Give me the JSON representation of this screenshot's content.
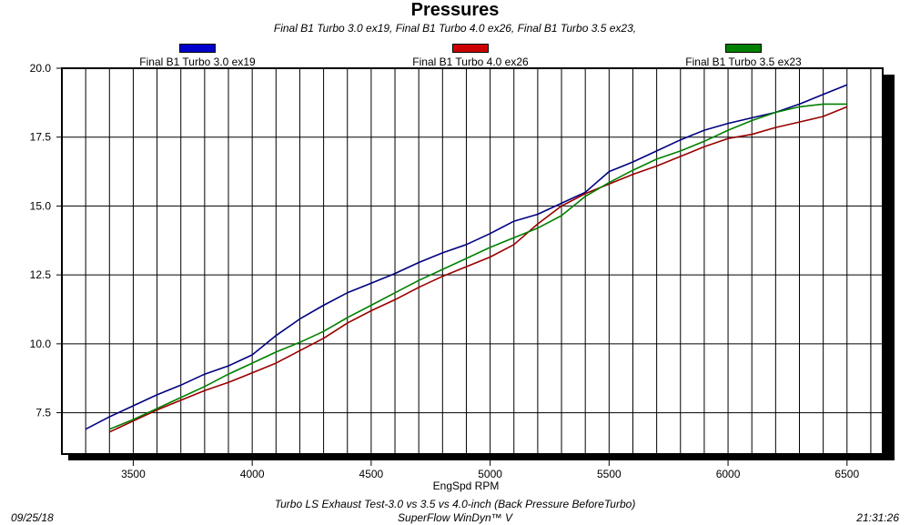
{
  "chart_data": {
    "type": "line",
    "title": "Pressures",
    "subtitle": "Final B1 Turbo 3.0 ex19, Final B1 Turbo 4.0 ex26, Final B1 Turbo 3.5 ex23,",
    "xlabel": "EngSpd RPM",
    "ylabel": "",
    "xlim": [
      3200,
      6650
    ],
    "ylim": [
      6.0,
      20.0
    ],
    "x_ticks": [
      3500,
      4000,
      4500,
      5000,
      5500,
      6000,
      6500
    ],
    "y_ticks": [
      7.5,
      10.0,
      12.5,
      15.0,
      17.5,
      20.0
    ],
    "grid": true,
    "legend_position": "top",
    "series": [
      {
        "name": "Final B1 Turbo 3.0 ex19",
        "color": "#000080",
        "swatch_color": "#0000cc",
        "x": [
          3300,
          3400,
          3500,
          3600,
          3700,
          3800,
          3900,
          4000,
          4100,
          4200,
          4300,
          4400,
          4500,
          4600,
          4700,
          4800,
          4900,
          5000,
          5100,
          5200,
          5300,
          5400,
          5500,
          5600,
          5700,
          5800,
          5900,
          6000,
          6100,
          6200,
          6300,
          6400,
          6500
        ],
        "y": [
          6.9,
          7.35,
          7.75,
          8.15,
          8.5,
          8.9,
          9.2,
          9.6,
          10.3,
          10.9,
          11.4,
          11.85,
          12.2,
          12.55,
          12.95,
          13.3,
          13.6,
          14.0,
          14.45,
          14.7,
          15.1,
          15.5,
          16.25,
          16.6,
          17.0,
          17.4,
          17.75,
          18.0,
          18.2,
          18.4,
          18.7,
          19.05,
          19.4
        ]
      },
      {
        "name": "Final B1 Turbo 4.0 ex26",
        "color": "#990000",
        "swatch_color": "#cc0000",
        "x": [
          3400,
          3500,
          3600,
          3700,
          3800,
          3900,
          4000,
          4100,
          4200,
          4300,
          4400,
          4500,
          4600,
          4700,
          4800,
          4900,
          5000,
          5100,
          5200,
          5300,
          5400,
          5500,
          5600,
          5700,
          5800,
          5900,
          6000,
          6100,
          6200,
          6300,
          6400,
          6500
        ],
        "y": [
          6.8,
          7.2,
          7.6,
          7.95,
          8.3,
          8.6,
          8.95,
          9.3,
          9.75,
          10.2,
          10.75,
          11.2,
          11.6,
          12.05,
          12.45,
          12.8,
          13.15,
          13.6,
          14.35,
          15.0,
          15.45,
          15.8,
          16.15,
          16.45,
          16.8,
          17.15,
          17.45,
          17.6,
          17.85,
          18.05,
          18.25,
          18.6
        ]
      },
      {
        "name": "Final B1 Turbo 3.5 ex23",
        "color": "#008000",
        "swatch_color": "#008000",
        "x": [
          3400,
          3500,
          3600,
          3700,
          3800,
          3900,
          4000,
          4100,
          4200,
          4300,
          4400,
          4500,
          4600,
          4700,
          4800,
          4900,
          5000,
          5100,
          5200,
          5300,
          5400,
          5500,
          5600,
          5700,
          5800,
          5900,
          6000,
          6100,
          6200,
          6300,
          6400,
          6500
        ],
        "y": [
          6.9,
          7.25,
          7.65,
          8.05,
          8.45,
          8.9,
          9.3,
          9.7,
          10.05,
          10.45,
          10.95,
          11.4,
          11.85,
          12.3,
          12.7,
          13.1,
          13.5,
          13.85,
          14.2,
          14.65,
          15.35,
          15.85,
          16.3,
          16.7,
          17.0,
          17.35,
          17.75,
          18.1,
          18.4,
          18.6,
          18.7,
          18.7
        ]
      }
    ]
  },
  "footer": {
    "date": "09/25/18",
    "time": "21:31:26",
    "description": "Turbo LS Exhaust Test-3.0 vs 3.5 vs 4.0-inch (Back Pressure BeforeTurbo)",
    "software": "SuperFlow WinDyn™ V"
  }
}
